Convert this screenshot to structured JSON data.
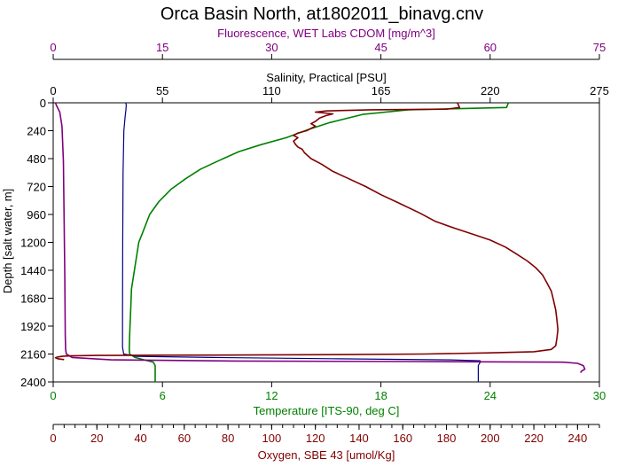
{
  "chart_data": {
    "type": "line",
    "title": "Orca Basin North, at1802011_binavg.cnv",
    "ylabel": "Depth [salt water, m]",
    "ylim": [
      0,
      2400
    ],
    "y_ticks": [
      "0",
      "240",
      "480",
      "720",
      "960",
      "1200",
      "1440",
      "1680",
      "1920",
      "2160",
      "2400"
    ],
    "grid": false,
    "axes": {
      "fluorescence": {
        "label": "Fluorescence, WET Labs CDOM [mg/m^3]",
        "range": [
          0,
          75
        ],
        "ticks": [
          "0",
          "15",
          "30",
          "45",
          "60",
          "75"
        ],
        "position": "top",
        "color": "#800080"
      },
      "salinity": {
        "label": "Salinity, Practical [PSU]",
        "range": [
          0,
          275
        ],
        "ticks": [
          "0",
          "55",
          "110",
          "165",
          "220",
          "275"
        ],
        "position": "top",
        "color": "#000000"
      },
      "temperature": {
        "label": "Temperature [ITS-90, deg C]",
        "range": [
          0,
          30
        ],
        "ticks": [
          "0",
          "6",
          "12",
          "18",
          "24",
          "30"
        ],
        "position": "bottom",
        "color": "#008000"
      },
      "oxygen": {
        "label": "Oxygen, SBE 43 [umol/Kg]",
        "range": [
          0,
          250
        ],
        "ticks": [
          "0",
          "20",
          "40",
          "60",
          "80",
          "100",
          "120",
          "140",
          "160",
          "180",
          "200",
          "220",
          "240"
        ],
        "position": "bottom",
        "color": "#800000"
      }
    },
    "series": [
      {
        "axis": "temperature",
        "color": "#008000",
        "points": [
          [
            25.0,
            0
          ],
          [
            24.9,
            40
          ],
          [
            19.5,
            60
          ],
          [
            17,
            100
          ],
          [
            15.2,
            170
          ],
          [
            14.0,
            230
          ],
          [
            12.8,
            300
          ],
          [
            11.4,
            360
          ],
          [
            10.2,
            420
          ],
          [
            9.2,
            490
          ],
          [
            8.1,
            570
          ],
          [
            7.3,
            650
          ],
          [
            6.5,
            740
          ],
          [
            5.8,
            850
          ],
          [
            5.3,
            960
          ],
          [
            5.0,
            1080
          ],
          [
            4.7,
            1200
          ],
          [
            4.5,
            1400
          ],
          [
            4.3,
            1600
          ],
          [
            4.25,
            1800
          ],
          [
            4.2,
            2000
          ],
          [
            4.18,
            2120
          ],
          [
            4.2,
            2160
          ],
          [
            4.5,
            2190
          ],
          [
            5.0,
            2210
          ],
          [
            5.5,
            2230
          ],
          [
            5.6,
            2260
          ],
          [
            5.6,
            2300
          ],
          [
            5.6,
            2360
          ],
          [
            5.6,
            2400
          ]
        ]
      },
      {
        "axis": "salinity",
        "color": "#000080",
        "points": [
          [
            36.5,
            0
          ],
          [
            36.8,
            20
          ],
          [
            36.6,
            60
          ],
          [
            36.2,
            120
          ],
          [
            35.6,
            240
          ],
          [
            35.2,
            600
          ],
          [
            35.0,
            1200
          ],
          [
            34.9,
            1800
          ],
          [
            34.9,
            2100
          ],
          [
            35.5,
            2160
          ],
          [
            42,
            2180
          ],
          [
            80,
            2190
          ],
          [
            140,
            2200
          ],
          [
            200,
            2210
          ],
          [
            215,
            2218
          ],
          [
            215,
            2230
          ],
          [
            214,
            2260
          ],
          [
            214,
            2300
          ],
          [
            214,
            2360
          ],
          [
            214,
            2400
          ]
        ]
      },
      {
        "axis": "fluorescence",
        "color": "#800080",
        "points": [
          [
            0.3,
            0
          ],
          [
            0.5,
            30
          ],
          [
            0.9,
            80
          ],
          [
            1.2,
            200
          ],
          [
            1.4,
            500
          ],
          [
            1.5,
            1000
          ],
          [
            1.6,
            1500
          ],
          [
            1.65,
            2000
          ],
          [
            1.7,
            2120
          ],
          [
            1.8,
            2160
          ],
          [
            2.6,
            2190
          ],
          [
            8,
            2210
          ],
          [
            25,
            2220
          ],
          [
            50,
            2225
          ],
          [
            70,
            2230
          ],
          [
            72,
            2240
          ],
          [
            72.8,
            2260
          ],
          [
            73,
            2290
          ],
          [
            72.6,
            2305
          ],
          [
            72.4,
            2320
          ]
        ]
      },
      {
        "axis": "oxygen",
        "color": "#800000",
        "points": [
          [
            185,
            0
          ],
          [
            186,
            40
          ],
          [
            180,
            55
          ],
          [
            145,
            60
          ],
          [
            125,
            70
          ],
          [
            120,
            80
          ],
          [
            128,
            95
          ],
          [
            125,
            110
          ],
          [
            122,
            130
          ],
          [
            120,
            160
          ],
          [
            118,
            180
          ],
          [
            120,
            200
          ],
          [
            116,
            240
          ],
          [
            112,
            260
          ],
          [
            110,
            280
          ],
          [
            112,
            300
          ],
          [
            110,
            330
          ],
          [
            111,
            360
          ],
          [
            112,
            380
          ],
          [
            114,
            400
          ],
          [
            115,
            430
          ],
          [
            118,
            480
          ],
          [
            123,
            530
          ],
          [
            128,
            590
          ],
          [
            135,
            650
          ],
          [
            143,
            720
          ],
          [
            150,
            790
          ],
          [
            158,
            860
          ],
          [
            168,
            950
          ],
          [
            175,
            1020
          ],
          [
            184,
            1080
          ],
          [
            192,
            1130
          ],
          [
            200,
            1180
          ],
          [
            207,
            1240
          ],
          [
            212,
            1300
          ],
          [
            217,
            1360
          ],
          [
            221,
            1420
          ],
          [
            224,
            1480
          ],
          [
            226,
            1550
          ],
          [
            228,
            1620
          ],
          [
            229,
            1700
          ],
          [
            230,
            1780
          ],
          [
            230.5,
            1860
          ],
          [
            231,
            1950
          ],
          [
            230.5,
            2030
          ],
          [
            230,
            2090
          ],
          [
            228,
            2120
          ],
          [
            220,
            2140
          ],
          [
            200,
            2150
          ],
          [
            170,
            2160
          ],
          [
            130,
            2165
          ],
          [
            90,
            2168
          ],
          [
            50,
            2170
          ],
          [
            20,
            2172
          ],
          [
            8,
            2176
          ],
          [
            4,
            2180
          ],
          [
            2,
            2186
          ],
          [
            1,
            2192
          ],
          [
            2,
            2200
          ],
          [
            5,
            2208
          ]
        ]
      }
    ]
  }
}
